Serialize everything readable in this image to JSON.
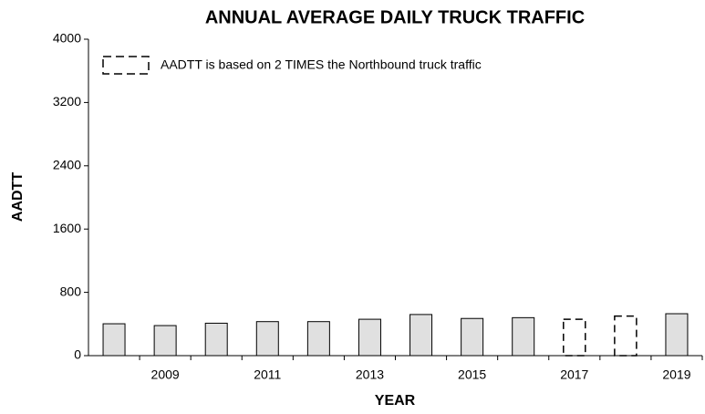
{
  "chart_data": {
    "type": "bar",
    "title": "ANNUAL AVERAGE DAILY TRUCK TRAFFIC",
    "x_label": "YEAR",
    "y_label": "AADTT",
    "categories": [
      null,
      "2009",
      null,
      "2011",
      null,
      "2013",
      null,
      "2015",
      null,
      "2017",
      null,
      "2019"
    ],
    "values": [
      403,
      380,
      410,
      430,
      430,
      460,
      520,
      470,
      480,
      460,
      500,
      530
    ],
    "dashed": [
      false,
      false,
      false,
      false,
      false,
      false,
      false,
      false,
      false,
      true,
      true,
      false
    ],
    "color": "#e0e0e0",
    "legend": {
      "label": "AADTT is based on 2 TIMES the Northbound truck traffic",
      "dashed": true
    },
    "ylim": [
      0,
      4000
    ],
    "yticks": [
      0,
      800,
      1600,
      2400,
      3200,
      4000
    ],
    "grid": false
  }
}
